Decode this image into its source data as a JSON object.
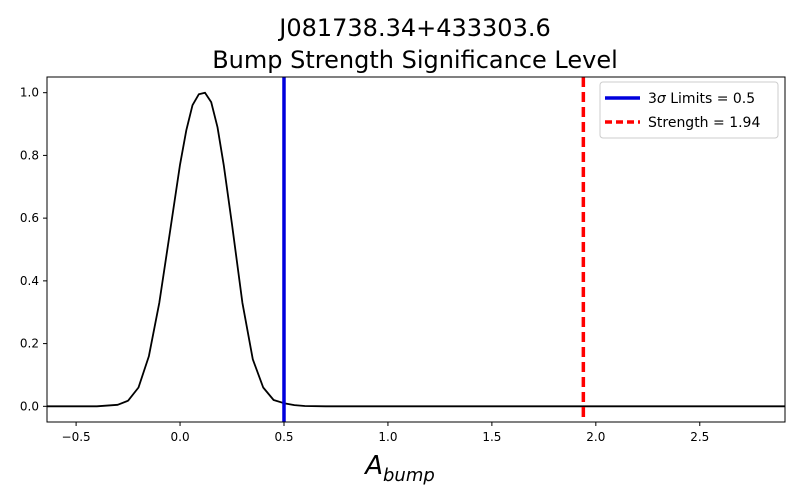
{
  "chart_data": {
    "type": "line",
    "title_line1": "J081738.34+433303.6",
    "title_line2": "Bump Strength Significance Level",
    "xlabel_base": "A",
    "xlabel_sub": "bump",
    "xlim": [
      -0.64,
      2.91
    ],
    "ylim": [
      -0.05,
      1.05
    ],
    "x_ticks": [
      -0.5,
      0.0,
      0.5,
      1.0,
      1.5,
      2.0,
      2.5
    ],
    "x_tick_labels": [
      "−0.5",
      "0.0",
      "0.5",
      "1.0",
      "1.5",
      "2.0",
      "2.5"
    ],
    "y_ticks": [
      0.0,
      0.2,
      0.4,
      0.6,
      0.8,
      1.0
    ],
    "y_tick_labels": [
      "0.0",
      "0.2",
      "0.4",
      "0.6",
      "0.8",
      "1.0"
    ],
    "grid": false,
    "legend_placement": "top-right",
    "series": [
      {
        "kind": "curve",
        "color": "#000000",
        "x": [
          -0.64,
          -0.5,
          -0.4,
          -0.3,
          -0.25,
          -0.2,
          -0.15,
          -0.1,
          -0.05,
          0.0,
          0.03,
          0.06,
          0.09,
          0.12,
          0.15,
          0.18,
          0.21,
          0.25,
          0.3,
          0.35,
          0.4,
          0.45,
          0.5,
          0.55,
          0.6,
          0.7,
          1.0,
          1.5,
          2.0,
          2.5,
          2.91
        ],
        "y": [
          0.0,
          0.0,
          0.0,
          0.005,
          0.018,
          0.06,
          0.16,
          0.33,
          0.55,
          0.77,
          0.88,
          0.96,
          0.995,
          1.0,
          0.97,
          0.89,
          0.77,
          0.58,
          0.33,
          0.15,
          0.06,
          0.02,
          0.01,
          0.004,
          0.001,
          0.0,
          0.0,
          0.0,
          0.0,
          0.0,
          0.0
        ]
      }
    ],
    "vlines": [
      {
        "label": "3σ Limits = 0.5",
        "label_prefix": "3",
        "label_sigma": "σ",
        "label_rest": " Limits = 0.5",
        "x": 0.5,
        "color": "#0000dd",
        "style": "solid"
      },
      {
        "label": "Strength = 1.94",
        "x": 1.94,
        "color": "#ff0000",
        "style": "dashed"
      }
    ]
  }
}
